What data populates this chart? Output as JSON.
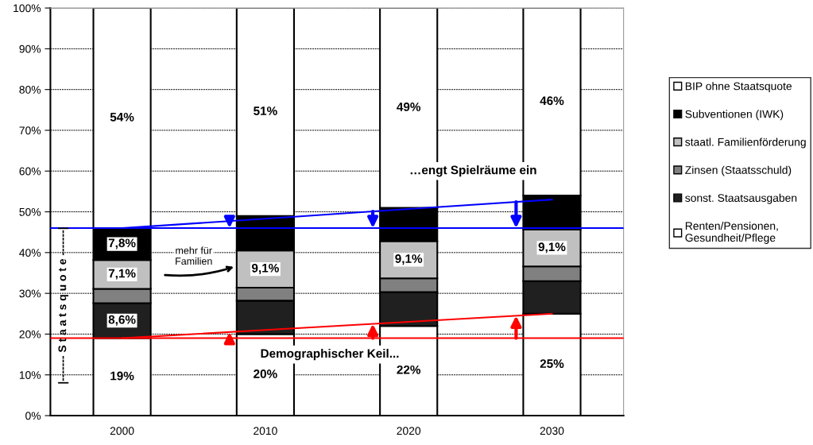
{
  "chart_data": {
    "type": "bar",
    "stacked": true,
    "categories": [
      "2000",
      "2010",
      "2020",
      "2030"
    ],
    "series": [
      {
        "name": "Renten/Pensionen,\nGesundheit/Pflege",
        "color": "#ffffff",
        "values": [
          19,
          20,
          22,
          25
        ],
        "value_labels": [
          "19%",
          "20%",
          "22%",
          "25%"
        ]
      },
      {
        "name": "sonst. Staatsausgaben",
        "color": "#202020",
        "values": [
          8.6,
          8.2,
          8.3,
          8
        ],
        "value_labels": [
          "8,6%",
          null,
          null,
          null
        ]
      },
      {
        "name": "Zinsen (Staatsschuld)",
        "color": "#808080",
        "values": [
          3.5,
          3.2,
          3.4,
          3.6
        ]
      },
      {
        "name": "staatl. Familienförderung",
        "color": "#c0c0c0",
        "values": [
          7.1,
          9.1,
          9.1,
          9.1
        ],
        "value_labels": [
          "7,1%",
          "9,1%",
          "9,1%",
          "9,1%"
        ]
      },
      {
        "name": "Subventionen (IWK)",
        "color": "#000000",
        "values": [
          7.8,
          8.5,
          8.2,
          8.3
        ],
        "value_labels": [
          "7,8%",
          null,
          null,
          null
        ]
      },
      {
        "name": "BIP ohne Staatsquote",
        "color": "#ffffff",
        "values": [
          54,
          51,
          49,
          46
        ],
        "value_labels": [
          "54%",
          "51%",
          "49%",
          "46%"
        ]
      },
      {
        "type": "line",
        "color": "#0000ff",
        "values": [
          46,
          48.3,
          50.7,
          53
        ]
      },
      {
        "type": "line",
        "color": "#ff0000",
        "values": [
          19,
          21,
          23,
          25
        ]
      }
    ],
    "ref_lines": [
      {
        "axis": "y",
        "value": 46,
        "color": "#0000ff"
      },
      {
        "axis": "y",
        "value": 19,
        "color": "#ff0000"
      }
    ],
    "ylim": [
      0,
      100
    ],
    "yticks": [
      {
        "value": 0,
        "label": "0%"
      },
      {
        "value": 10,
        "label": "10%"
      },
      {
        "value": 20,
        "label": "20%"
      },
      {
        "value": 30,
        "label": "30%"
      },
      {
        "value": 40,
        "label": "40%"
      },
      {
        "value": 50,
        "label": "50%"
      },
      {
        "value": 60,
        "label": "60%"
      },
      {
        "value": 70,
        "label": "70%"
      },
      {
        "value": 80,
        "label": "80%"
      },
      {
        "value": 90,
        "label": "90%"
      },
      {
        "value": 100,
        "label": "100%"
      }
    ],
    "grid": "y",
    "legend": "right",
    "annotations": [
      "mehr für\nFamilien",
      "…engt Spielräume ein",
      "Demographischer Keil...",
      "|------- S t a a t s q u o t e -------|"
    ]
  }
}
